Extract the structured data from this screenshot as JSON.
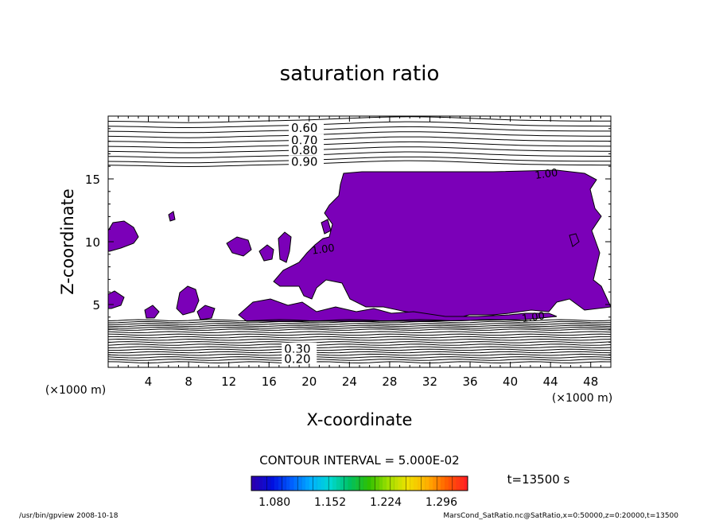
{
  "chart_data": {
    "type": "contour",
    "title": "saturation ratio",
    "xlabel": "X-coordinate",
    "ylabel": "Z-coordinate",
    "x_unit": "(×1000 m)",
    "y_unit": "(×1000 m)",
    "xlim": [
      0,
      50
    ],
    "ylim": [
      0,
      20
    ],
    "x_ticks": [
      "4",
      "8",
      "12",
      "16",
      "20",
      "24",
      "28",
      "32",
      "36",
      "40",
      "44",
      "48"
    ],
    "x_tick_values": [
      4,
      8,
      12,
      16,
      20,
      24,
      28,
      32,
      36,
      40,
      44,
      48
    ],
    "y_ticks": [
      "5",
      "10",
      "15"
    ],
    "y_tick_values": [
      5,
      10,
      15
    ],
    "upper_contour_labels": [
      {
        "text": "0.60",
        "level": 0.6,
        "x": 18.2,
        "z": 19.0
      },
      {
        "text": "0.70",
        "level": 0.7,
        "x": 18.2,
        "z": 18.0
      },
      {
        "text": "0.80",
        "level": 0.8,
        "x": 18.2,
        "z": 17.2
      },
      {
        "text": "0.90",
        "level": 0.9,
        "x": 18.2,
        "z": 16.3
      }
    ],
    "lower_contour_labels": [
      {
        "text": "0.30",
        "level": 0.3,
        "x": 17.5,
        "z": 1.4
      },
      {
        "text": "0.20",
        "level": 0.2,
        "x": 17.5,
        "z": 0.6
      }
    ],
    "inline_labels": [
      {
        "text": "1.00",
        "x": 42.5,
        "z": 15.0
      },
      {
        "text": "1.00",
        "x": 20.3,
        "z": 9.0
      },
      {
        "text": "1.00",
        "x": 41.2,
        "z": 3.6
      }
    ],
    "supersaturated_fill_color": "#7b00b8",
    "contour_interval_label": "CONTOUR INTERVAL = 5.000E-02",
    "colorbar": {
      "tick_labels": [
        "1.080",
        "1.152",
        "1.224",
        "1.296"
      ],
      "tick_values": [
        1.08,
        1.152,
        1.224,
        1.296
      ],
      "range": [
        1.05,
        1.33
      ],
      "colors": [
        "#2a00b0",
        "#0010e0",
        "#0060ff",
        "#00b0ff",
        "#00d8d0",
        "#00c060",
        "#30c000",
        "#a0e000",
        "#f0e000",
        "#ffb000",
        "#ff6000",
        "#ff2020"
      ]
    },
    "time_label": "t=13500 s"
  },
  "footer": {
    "left": "/usr/bin/gpview    2008-10-18",
    "right": "MarsCond_SatRatio.nc@SatRatio,x=0:50000,z=0:20000,t=13500"
  }
}
